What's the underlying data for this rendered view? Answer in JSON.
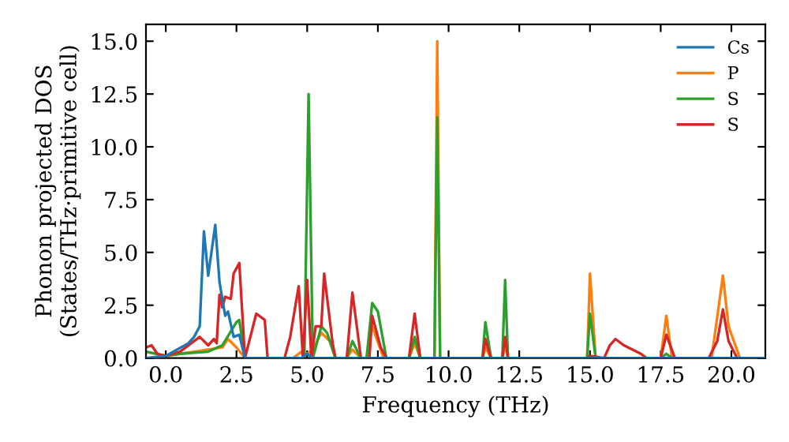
{
  "chart_data": {
    "type": "line",
    "xlabel": "Frequency (THz)",
    "ylabel": "Phonon projected DOS\n(States/THz·primitive cell)",
    "xlim": [
      -0.7,
      21.2
    ],
    "ylim": [
      0,
      15.8
    ],
    "xticks": [
      {
        "value": 0,
        "label": "0.0"
      },
      {
        "value": 2.5,
        "label": "2.5"
      },
      {
        "value": 5,
        "label": "5.0"
      },
      {
        "value": 7.5,
        "label": "7.5"
      },
      {
        "value": 10,
        "label": "10.0"
      },
      {
        "value": 12.5,
        "label": "12.5"
      },
      {
        "value": 15,
        "label": "15.0"
      },
      {
        "value": 17.5,
        "label": "17.5"
      },
      {
        "value": 20,
        "label": "20.0"
      }
    ],
    "yticks": [
      {
        "value": 0,
        "label": "0.0"
      },
      {
        "value": 2.5,
        "label": "2.5"
      },
      {
        "value": 5,
        "label": "5.0"
      },
      {
        "value": 7.5,
        "label": "7.5"
      },
      {
        "value": 10,
        "label": "10.0"
      },
      {
        "value": 12.5,
        "label": "12.5"
      },
      {
        "value": 15,
        "label": "15.0"
      }
    ],
    "grid": false,
    "legend": "top right",
    "marker": "none",
    "line_style": "solid",
    "series": [
      {
        "name": "Cs",
        "color": "#1f77b4",
        "x": [
          -0.7,
          0,
          0.4,
          0.8,
          1.0,
          1.2,
          1.35,
          1.5,
          1.75,
          1.9,
          2.1,
          2.2,
          2.4,
          2.6,
          2.8,
          4.8,
          5.0,
          5.2,
          21.2
        ],
        "values": [
          0,
          0.1,
          0.4,
          0.7,
          1.0,
          1.5,
          6.0,
          3.9,
          6.3,
          3.6,
          2.0,
          2.2,
          1.0,
          1.1,
          0,
          0,
          0.2,
          0,
          0
        ]
      },
      {
        "name": "P",
        "color": "#ff7f0e",
        "x": [
          -0.7,
          0,
          0.5,
          1.5,
          2.0,
          2.2,
          2.5,
          2.8,
          4.5,
          4.8,
          5.0,
          5.2,
          5.5,
          5.8,
          6.0,
          6.4,
          6.6,
          6.9,
          7.1,
          7.3,
          7.7,
          8.6,
          8.8,
          9.0,
          9.5,
          9.6,
          9.7,
          11.2,
          11.3,
          11.5,
          11.9,
          12.0,
          12.1,
          14.9,
          15.0,
          15.2,
          17.5,
          17.7,
          17.9,
          19.3,
          19.7,
          19.9,
          20.3,
          21.2
        ],
        "values": [
          0.3,
          0.1,
          0.2,
          0.4,
          0.5,
          0.9,
          0.5,
          0,
          0,
          0.3,
          0.2,
          0.4,
          1.2,
          0.8,
          0,
          0,
          0.4,
          0,
          0,
          1.5,
          0,
          0,
          0.7,
          0,
          0,
          15.0,
          0,
          0,
          0.5,
          0,
          0,
          0.6,
          0,
          0,
          4.0,
          0,
          0,
          2.0,
          0,
          0,
          3.9,
          1.5,
          0,
          0
        ]
      },
      {
        "name": "S",
        "color": "#2ca02c",
        "x": [
          -0.7,
          0,
          0.5,
          1.5,
          2.0,
          2.5,
          2.6,
          2.8,
          4.9,
          5.05,
          5.2,
          5.5,
          5.7,
          6.0,
          6.4,
          6.6,
          6.9,
          7.1,
          7.3,
          7.5,
          7.8,
          8.6,
          8.8,
          9.0,
          9.5,
          9.6,
          9.7,
          11.2,
          11.3,
          11.5,
          11.9,
          12.0,
          12.1,
          14.9,
          15.0,
          15.2,
          17.5,
          17.7,
          17.9,
          21.2
        ],
        "values": [
          0.3,
          0.1,
          0.2,
          0.3,
          0.6,
          1.7,
          1.8,
          0,
          0,
          12.5,
          0,
          1.5,
          1.2,
          0,
          0,
          0.8,
          0,
          0,
          2.6,
          2.2,
          0,
          0,
          1.0,
          0,
          0,
          11.4,
          0,
          0,
          1.7,
          0,
          0,
          3.7,
          0,
          0,
          2.1,
          0,
          0,
          0.2,
          0,
          0
        ]
      },
      {
        "name": "S",
        "color": "#d62728",
        "x": [
          -0.7,
          -0.5,
          -0.3,
          0,
          0.5,
          1.2,
          1.5,
          1.7,
          1.8,
          1.9,
          2.0,
          2.1,
          2.3,
          2.4,
          2.6,
          2.8,
          3.2,
          3.5,
          3.6,
          4.2,
          4.4,
          4.7,
          4.85,
          5.0,
          5.15,
          5.3,
          5.5,
          5.6,
          5.9,
          6.0,
          6.4,
          6.6,
          6.9,
          7.2,
          7.3,
          7.6,
          7.8,
          8.6,
          8.8,
          9.0,
          11.2,
          11.3,
          11.5,
          11.9,
          12.0,
          12.1,
          14.9,
          15.0,
          15.5,
          15.7,
          15.9,
          16.2,
          16.8,
          17.0,
          17.5,
          17.7,
          18.0,
          19.2,
          19.5,
          19.7,
          19.9,
          20.2,
          21.2
        ],
        "values": [
          0.5,
          0.6,
          0.2,
          0.1,
          0.3,
          1.0,
          0.6,
          0.9,
          0.7,
          3.0,
          2.4,
          2.9,
          2.8,
          4.0,
          4.5,
          0,
          2.1,
          1.8,
          0,
          0,
          1.0,
          3.4,
          0,
          3.7,
          0,
          1.5,
          1.5,
          4.0,
          0.7,
          0,
          0,
          3.1,
          0,
          0,
          2.0,
          0.5,
          0,
          0,
          2.1,
          0,
          0,
          0.9,
          0,
          0,
          1.0,
          0,
          0,
          0.1,
          0,
          0.6,
          0.9,
          0.6,
          0.2,
          0,
          0,
          1.1,
          0,
          0,
          0.8,
          2.3,
          0.8,
          0,
          0
        ]
      }
    ]
  }
}
